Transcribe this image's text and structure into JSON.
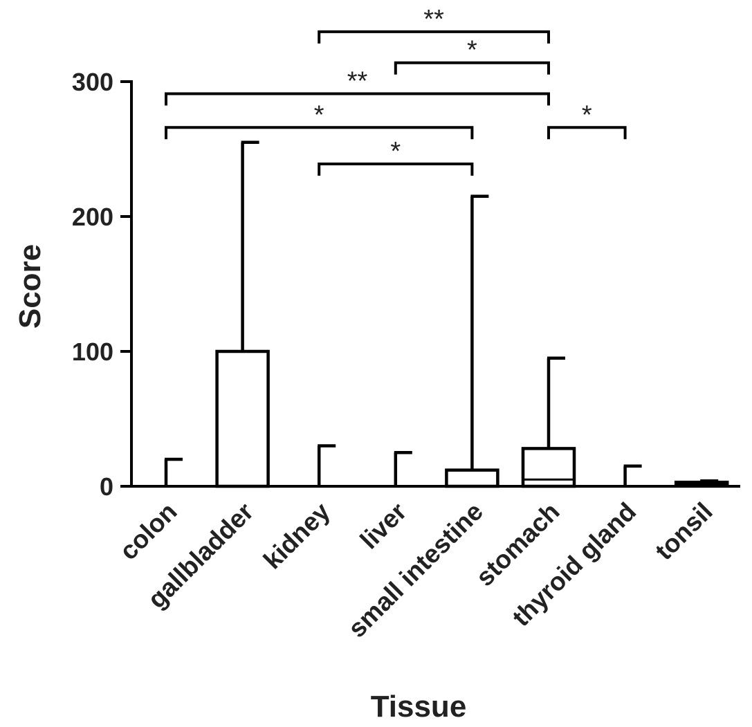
{
  "chart_data": {
    "type": "box",
    "title": "",
    "xlabel": "Tissue",
    "ylabel": "Score",
    "ylim": [
      0,
      300
    ],
    "yticks": [
      0,
      100,
      200,
      300
    ],
    "categories": [
      "colon",
      "gallbladder",
      "kidney",
      "liver",
      "small intestine",
      "stomach",
      "thyroid gland",
      "tonsil"
    ],
    "boxes": [
      {
        "category": "colon",
        "min": 0,
        "q1": 0,
        "median": 0,
        "q3": 0,
        "max": 20
      },
      {
        "category": "gallbladder",
        "min": 0,
        "q1": 0,
        "median": 0,
        "q3": 100,
        "max": 255
      },
      {
        "category": "kidney",
        "min": 0,
        "q1": 0,
        "median": 0,
        "q3": 0,
        "max": 30
      },
      {
        "category": "liver",
        "min": 0,
        "q1": 0,
        "median": 0,
        "q3": 0,
        "max": 25
      },
      {
        "category": "small intestine",
        "min": 0,
        "q1": 0,
        "median": 0,
        "q3": 12,
        "max": 215
      },
      {
        "category": "stomach",
        "min": 0,
        "q1": 0,
        "median": 5,
        "q3": 28,
        "max": 95
      },
      {
        "category": "thyroid gland",
        "min": 0,
        "q1": 0,
        "median": 0,
        "q3": 0,
        "max": 15
      },
      {
        "category": "tonsil",
        "min": 0,
        "q1": 1,
        "median": 2,
        "q3": 3,
        "max": 4
      }
    ],
    "significance": [
      {
        "from": "kidney",
        "to": "stomach",
        "label": "**",
        "y": 337
      },
      {
        "from": "liver",
        "to": "stomach",
        "label": "*",
        "y": 314
      },
      {
        "from": "colon",
        "to": "stomach",
        "label": "**",
        "y": 291
      },
      {
        "from": "colon",
        "to": "small intestine",
        "label": "*",
        "y": 266
      },
      {
        "from": "kidney",
        "to": "small intestine",
        "label": "*",
        "y": 239
      },
      {
        "from": "stomach",
        "to": "thyroid gland",
        "label": "*",
        "y": 266
      }
    ]
  }
}
